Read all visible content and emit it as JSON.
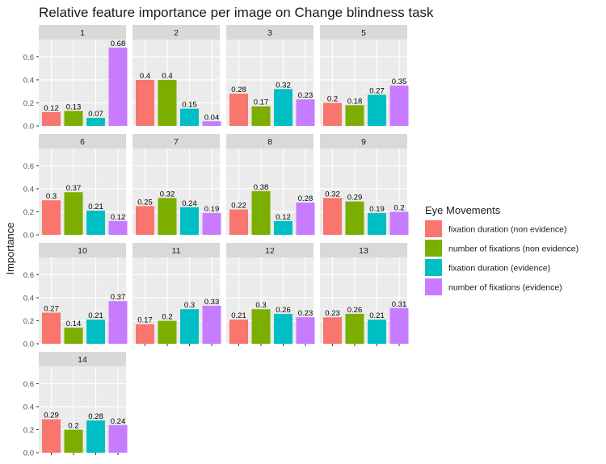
{
  "chart_data": {
    "type": "bar",
    "title": "Relative feature importance per image on Change blindness task",
    "ylabel": "Importance",
    "xlabel": "",
    "ylim": [
      0,
      0.75
    ],
    "yticks": [
      "0.0",
      "0.2",
      "0.4",
      "0.6"
    ],
    "legend": {
      "title": "Eye Movements",
      "placement": "right"
    },
    "series": [
      {
        "name": "fixation duration (non evidence)",
        "color": "#F8766D"
      },
      {
        "name": "number of fixations (non evidence)",
        "color": "#7CAE00"
      },
      {
        "name": "fixation duration (evidence)",
        "color": "#00BFC4"
      },
      {
        "name": "number of fixations (evidence)",
        "color": "#C77CFF"
      }
    ],
    "panels": [
      {
        "label": "1",
        "values": [
          0.12,
          0.13,
          0.07,
          0.68
        ],
        "value_labels": [
          "0.12",
          "0.13",
          "0.07",
          "0.68"
        ]
      },
      {
        "label": "2",
        "values": [
          0.4,
          0.4,
          0.15,
          0.04
        ],
        "value_labels": [
          "0.4",
          "0.4",
          "0.15",
          "0.04"
        ]
      },
      {
        "label": "3",
        "values": [
          0.28,
          0.17,
          0.32,
          0.23
        ],
        "value_labels": [
          "0.28",
          "0.17",
          "0.32",
          "0.23"
        ]
      },
      {
        "label": "5",
        "values": [
          0.2,
          0.18,
          0.27,
          0.35
        ],
        "value_labels": [
          "0.2",
          "0.18",
          "0.27",
          "0.35"
        ]
      },
      {
        "label": "6",
        "values": [
          0.3,
          0.37,
          0.21,
          0.12
        ],
        "value_labels": [
          "0.3",
          "0.37",
          "0.21",
          "0.12"
        ]
      },
      {
        "label": "7",
        "values": [
          0.25,
          0.32,
          0.24,
          0.19
        ],
        "value_labels": [
          "0.25",
          "0.32",
          "0.24",
          "0.19"
        ]
      },
      {
        "label": "8",
        "values": [
          0.22,
          0.38,
          0.12,
          0.28
        ],
        "value_labels": [
          "0.22",
          "0.38",
          "0.12",
          "0.28"
        ]
      },
      {
        "label": "9",
        "values": [
          0.32,
          0.29,
          0.19,
          0.2
        ],
        "value_labels": [
          "0.32",
          "0.29",
          "0.19",
          "0.2"
        ]
      },
      {
        "label": "10",
        "values": [
          0.27,
          0.14,
          0.21,
          0.37
        ],
        "value_labels": [
          "0.27",
          "0.14",
          "0.21",
          "0.37"
        ]
      },
      {
        "label": "11",
        "values": [
          0.17,
          0.2,
          0.3,
          0.33
        ],
        "value_labels": [
          "0.17",
          "0.2",
          "0.3",
          "0.33"
        ]
      },
      {
        "label": "12",
        "values": [
          0.21,
          0.3,
          0.26,
          0.23
        ],
        "value_labels": [
          "0.21",
          "0.3",
          "0.26",
          "0.23"
        ]
      },
      {
        "label": "13",
        "values": [
          0.23,
          0.26,
          0.21,
          0.31
        ],
        "value_labels": [
          "0.23",
          "0.26",
          "0.21",
          "0.31"
        ]
      },
      {
        "label": "14",
        "values": [
          0.29,
          0.2,
          0.28,
          0.24
        ],
        "value_labels": [
          "0.29",
          "0.2",
          "0.28",
          "0.24"
        ]
      }
    ]
  }
}
